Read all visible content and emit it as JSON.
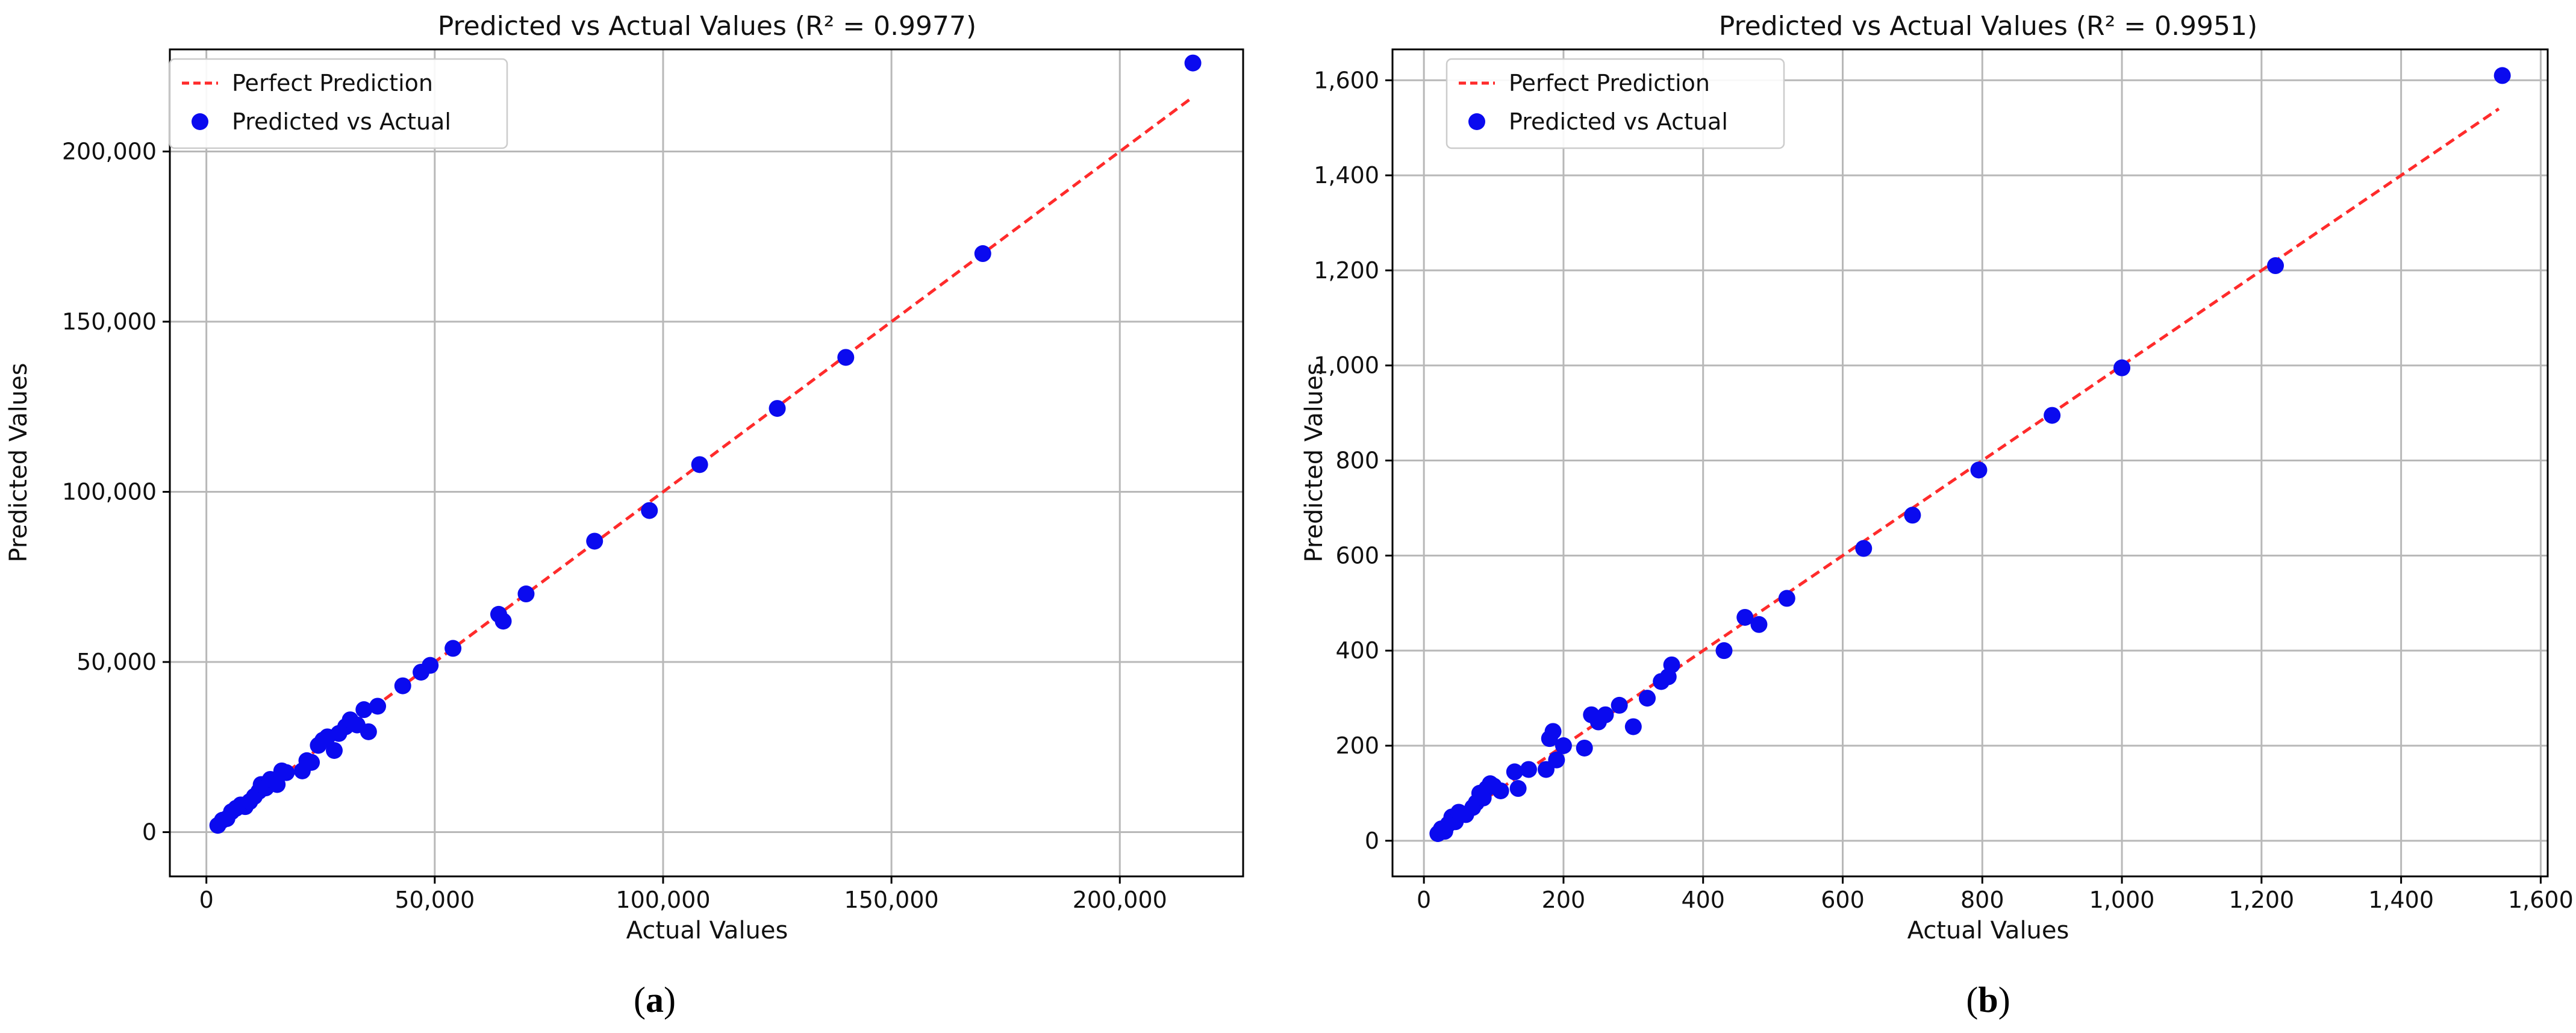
{
  "figure": {
    "panels": [
      {
        "label_prefix": "(",
        "label_letter": "a",
        "label_suffix": ")"
      },
      {
        "label_prefix": "(",
        "label_letter": "b",
        "label_suffix": ")"
      }
    ]
  },
  "chart_data": [
    {
      "type": "scatter",
      "title": "Predicted vs Actual Values (R² = 0.9977)",
      "xlabel": "Actual Values",
      "ylabel": "Predicted Values",
      "xlim": [
        -8000,
        227000
      ],
      "ylim": [
        -13000,
        230000
      ],
      "xticks": [
        0,
        50000,
        100000,
        150000,
        200000
      ],
      "xtick_labels": [
        "0",
        "50,000",
        "100,000",
        "150,000",
        "200,000"
      ],
      "yticks": [
        0,
        50000,
        100000,
        150000,
        200000
      ],
      "ytick_labels": [
        "0",
        "50,000",
        "100,000",
        "150,000",
        "200,000"
      ],
      "grid": true,
      "legend_position": "top-left",
      "legend": [
        {
          "label": "Perfect Prediction",
          "style": "dashed-line",
          "color": "#ff2b2b"
        },
        {
          "label": "Predicted vs Actual",
          "style": "marker",
          "color": "#0a0aef"
        }
      ],
      "perfect_line": {
        "x": [
          2000,
          216000
        ],
        "y": [
          2000,
          216000
        ]
      },
      "series": [
        {
          "name": "Predicted vs Actual",
          "points": [
            [
              2500,
              2000
            ],
            [
              3500,
              3500
            ],
            [
              4500,
              4000
            ],
            [
              5500,
              6000
            ],
            [
              6500,
              7000
            ],
            [
              7500,
              8000
            ],
            [
              8500,
              7500
            ],
            [
              9500,
              9000
            ],
            [
              10500,
              10500
            ],
            [
              11500,
              12000
            ],
            [
              12000,
              14000
            ],
            [
              13000,
              13000
            ],
            [
              14000,
              15500
            ],
            [
              15500,
              14000
            ],
            [
              16500,
              18000
            ],
            [
              17500,
              17500
            ],
            [
              21000,
              18000
            ],
            [
              22000,
              21000
            ],
            [
              23000,
              20500
            ],
            [
              24500,
              25500
            ],
            [
              25500,
              27000
            ],
            [
              26500,
              28000
            ],
            [
              28000,
              24000
            ],
            [
              29000,
              29000
            ],
            [
              30500,
              31000
            ],
            [
              31500,
              33000
            ],
            [
              33000,
              31500
            ],
            [
              34500,
              36000
            ],
            [
              35500,
              29500
            ],
            [
              37500,
              37000
            ],
            [
              43000,
              43000
            ],
            [
              47000,
              47000
            ],
            [
              49000,
              49000
            ],
            [
              54000,
              54000
            ],
            [
              64000,
              64000
            ],
            [
              65000,
              62000
            ],
            [
              70000,
              70000
            ],
            [
              85000,
              85500
            ],
            [
              97000,
              94500
            ],
            [
              108000,
              108000
            ],
            [
              125000,
              124500
            ],
            [
              140000,
              139500
            ],
            [
              170000,
              170000
            ],
            [
              216000,
              226000
            ]
          ]
        }
      ]
    },
    {
      "type": "scatter",
      "title": "Predicted vs Actual Values (R² = 0.9951)",
      "xlabel": "Actual Values",
      "ylabel": "Predicted Values",
      "xlim": [
        -45,
        1610
      ],
      "ylim": [
        -75,
        1665
      ],
      "xticks": [
        0,
        200,
        400,
        600,
        800,
        1000,
        1200,
        1400,
        1600
      ],
      "xtick_labels": [
        "0",
        "200",
        "400",
        "600",
        "800",
        "1,000",
        "1,200",
        "1,400",
        "1,600"
      ],
      "yticks": [
        0,
        200,
        400,
        600,
        800,
        1000,
        1200,
        1400,
        1600
      ],
      "ytick_labels": [
        "0",
        "200",
        "400",
        "600",
        "800",
        "1,000",
        "1,200",
        "1,400",
        "1,600"
      ],
      "grid": true,
      "legend_position": "top-left",
      "legend": [
        {
          "label": "Perfect Prediction",
          "style": "dashed-line",
          "color": "#ff2b2b"
        },
        {
          "label": "Predicted vs Actual",
          "style": "marker",
          "color": "#0a0aef"
        }
      ],
      "perfect_line": {
        "x": [
          20,
          1540
        ],
        "y": [
          20,
          1540
        ]
      },
      "series": [
        {
          "name": "Predicted vs Actual",
          "points": [
            [
              20,
              15
            ],
            [
              25,
              25
            ],
            [
              30,
              20
            ],
            [
              35,
              35
            ],
            [
              40,
              50
            ],
            [
              45,
              40
            ],
            [
              50,
              60
            ],
            [
              60,
              55
            ],
            [
              70,
              70
            ],
            [
              75,
              80
            ],
            [
              80,
              100
            ],
            [
              85,
              90
            ],
            [
              90,
              110
            ],
            [
              95,
              120
            ],
            [
              100,
              115
            ],
            [
              110,
              105
            ],
            [
              130,
              145
            ],
            [
              135,
              110
            ],
            [
              150,
              150
            ],
            [
              175,
              150
            ],
            [
              180,
              215
            ],
            [
              185,
              230
            ],
            [
              190,
              170
            ],
            [
              200,
              200
            ],
            [
              230,
              195
            ],
            [
              240,
              265
            ],
            [
              250,
              250
            ],
            [
              260,
              265
            ],
            [
              280,
              285
            ],
            [
              300,
              240
            ],
            [
              320,
              300
            ],
            [
              340,
              335
            ],
            [
              350,
              345
            ],
            [
              355,
              370
            ],
            [
              430,
              400
            ],
            [
              460,
              470
            ],
            [
              480,
              455
            ],
            [
              520,
              510
            ],
            [
              630,
              615
            ],
            [
              700,
              685
            ],
            [
              795,
              780
            ],
            [
              900,
              895
            ],
            [
              1000,
              995
            ],
            [
              1220,
              1210
            ],
            [
              1545,
              1610
            ]
          ]
        }
      ]
    }
  ]
}
